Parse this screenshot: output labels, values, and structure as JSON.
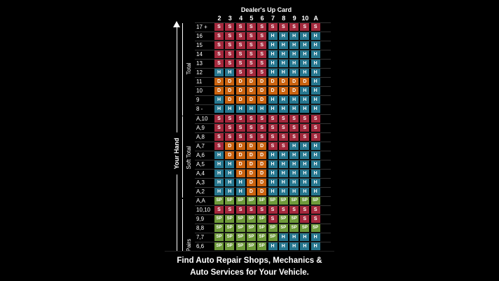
{
  "chart": {
    "title": "Dealer's Up Card",
    "columns": [
      "2",
      "3",
      "4",
      "5",
      "6",
      "7",
      "8",
      "9",
      "10",
      "A"
    ],
    "axis_label": "Your Hand",
    "section_labels": {
      "total": "Total",
      "soft_total": "Soft Total",
      "pairs": "Pairs"
    },
    "rows": [
      {
        "label": "17 +",
        "cells": [
          "S",
          "S",
          "S",
          "S",
          "S",
          "S",
          "S",
          "S",
          "S",
          "S"
        ]
      },
      {
        "label": "16",
        "cells": [
          "S",
          "S",
          "S",
          "S",
          "S",
          "H",
          "H",
          "H",
          "H",
          "H"
        ]
      },
      {
        "label": "15",
        "cells": [
          "S",
          "S",
          "S",
          "S",
          "S",
          "H",
          "H",
          "H",
          "H",
          "H"
        ]
      },
      {
        "label": "14",
        "cells": [
          "S",
          "S",
          "S",
          "S",
          "S",
          "H",
          "H",
          "H",
          "H",
          "H"
        ]
      },
      {
        "label": "13",
        "cells": [
          "S",
          "S",
          "S",
          "S",
          "S",
          "H",
          "H",
          "H",
          "H",
          "H"
        ]
      },
      {
        "label": "12",
        "cells": [
          "H",
          "H",
          "S",
          "S",
          "S",
          "H",
          "H",
          "H",
          "H",
          "H"
        ]
      },
      {
        "label": "11",
        "cells": [
          "D",
          "D",
          "D",
          "D",
          "D",
          "D",
          "D",
          "D",
          "D",
          "H"
        ]
      },
      {
        "label": "10",
        "cells": [
          "D",
          "D",
          "D",
          "D",
          "D",
          "D",
          "D",
          "D",
          "H",
          "H"
        ]
      },
      {
        "label": "9",
        "cells": [
          "H",
          "D",
          "D",
          "D",
          "D",
          "H",
          "H",
          "H",
          "H",
          "H"
        ]
      },
      {
        "label": "8 -",
        "cells": [
          "H",
          "H",
          "H",
          "H",
          "H",
          "H",
          "H",
          "H",
          "H",
          "H"
        ]
      },
      {
        "label": "A,10",
        "cells": [
          "S",
          "S",
          "S",
          "S",
          "S",
          "S",
          "S",
          "S",
          "S",
          "S"
        ]
      },
      {
        "label": "A,9",
        "cells": [
          "S",
          "S",
          "S",
          "S",
          "S",
          "S",
          "S",
          "S",
          "S",
          "S"
        ]
      },
      {
        "label": "A,8",
        "cells": [
          "S",
          "S",
          "S",
          "S",
          "S",
          "S",
          "S",
          "S",
          "S",
          "S"
        ]
      },
      {
        "label": "A,7",
        "cells": [
          "S",
          "D",
          "D",
          "D",
          "D",
          "S",
          "S",
          "H",
          "H",
          "H"
        ]
      },
      {
        "label": "A,6",
        "cells": [
          "H",
          "D",
          "D",
          "D",
          "D",
          "H",
          "H",
          "H",
          "H",
          "H"
        ]
      },
      {
        "label": "A,5",
        "cells": [
          "H",
          "H",
          "D",
          "D",
          "D",
          "H",
          "H",
          "H",
          "H",
          "H"
        ]
      },
      {
        "label": "A,4",
        "cells": [
          "H",
          "H",
          "D",
          "D",
          "D",
          "H",
          "H",
          "H",
          "H",
          "H"
        ]
      },
      {
        "label": "A,3",
        "cells": [
          "H",
          "H",
          "H",
          "D",
          "D",
          "H",
          "H",
          "H",
          "H",
          "H"
        ]
      },
      {
        "label": "A,2",
        "cells": [
          "H",
          "H",
          "H",
          "D",
          "D",
          "H",
          "H",
          "H",
          "H",
          "H"
        ]
      },
      {
        "label": "A,A",
        "cells": [
          "SP",
          "SP",
          "SP",
          "SP",
          "SP",
          "SP",
          "SP",
          "SP",
          "SP",
          "SP"
        ]
      },
      {
        "label": "10,10",
        "cells": [
          "S",
          "S",
          "S",
          "S",
          "S",
          "S",
          "S",
          "S",
          "S",
          "S"
        ]
      },
      {
        "label": "9,9",
        "cells": [
          "SP",
          "SP",
          "SP",
          "SP",
          "SP",
          "S",
          "SP",
          "SP",
          "S",
          "S"
        ]
      },
      {
        "label": "8,8",
        "cells": [
          "SP",
          "SP",
          "SP",
          "SP",
          "SP",
          "SP",
          "SP",
          "SP",
          "SP",
          "SP"
        ]
      },
      {
        "label": "7,7",
        "cells": [
          "SP",
          "SP",
          "SP",
          "SP",
          "SP",
          "SP",
          "H",
          "H",
          "H",
          "H"
        ]
      },
      {
        "label": "6,6",
        "cells": [
          "SP",
          "SP",
          "SP",
          "SP",
          "SP",
          "H",
          "H",
          "H",
          "H",
          "H"
        ]
      }
    ],
    "colors": {
      "S": "#a3283c",
      "H": "#26768e",
      "D": "#c9620f",
      "SP": "#6e9a3a"
    }
  },
  "banner": {
    "line1": "Find Auto Repair Shops, Mechanics &",
    "line2": "Auto Services for Your Vehicle."
  }
}
